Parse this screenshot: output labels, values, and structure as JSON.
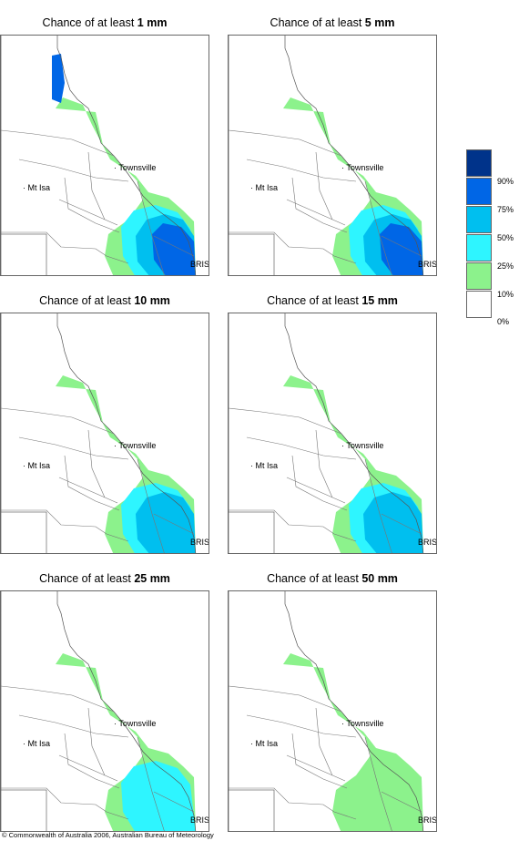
{
  "panels": [
    {
      "prefix": "Chance of at least ",
      "amount": "1 mm",
      "level": 5
    },
    {
      "prefix": "Chance of at least ",
      "amount": "5 mm",
      "level": 4
    },
    {
      "prefix": "Chance of at least ",
      "amount": "10 mm",
      "level": 3
    },
    {
      "prefix": "Chance of at least ",
      "amount": "15 mm",
      "level": 3
    },
    {
      "prefix": "Chance of at least ",
      "amount": "25 mm",
      "level": 2
    },
    {
      "prefix": "Chance of at least ",
      "amount": "50 mm",
      "level": 1
    }
  ],
  "places": {
    "townsville": "Townsville",
    "mt_isa": "Mt Isa",
    "brisbane": "BRIS"
  },
  "legend": {
    "colors": [
      "#00338a",
      "#0066e6",
      "#00bfef",
      "#2ef5ff",
      "#8cf28c",
      "#ffffff"
    ],
    "labels": [
      "90%",
      "75%",
      "50%",
      "25%",
      "10%",
      "0%"
    ]
  },
  "footer": "© Commonwealth of Australia 2006, Australian Bureau of Meteorology"
}
